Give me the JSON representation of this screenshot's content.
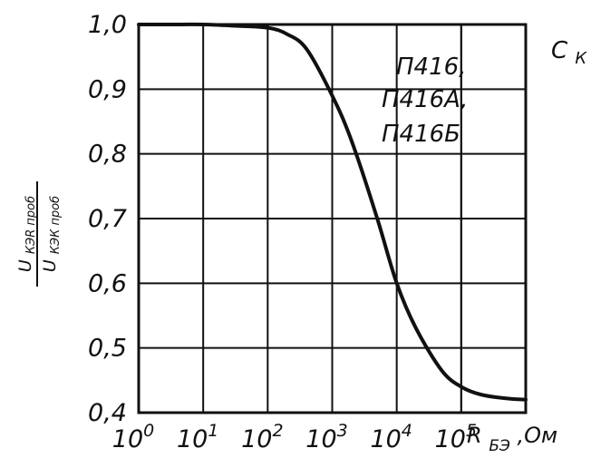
{
  "chart_data": {
    "type": "line",
    "x_scale": "log",
    "x_ticks": [
      1,
      10,
      100,
      1000,
      10000,
      100000
    ],
    "x_tick_labels": [
      {
        "base": "10",
        "exp": "0"
      },
      {
        "base": "10",
        "exp": "1"
      },
      {
        "base": "10",
        "exp": "2"
      },
      {
        "base": "10",
        "exp": "3"
      },
      {
        "base": "10",
        "exp": "4"
      },
      {
        "base": "10",
        "exp": "5"
      }
    ],
    "xlim": [
      1,
      1000000
    ],
    "ylim": [
      0.4,
      1.0
    ],
    "y_ticks": [
      1.0,
      0.9,
      0.8,
      0.7,
      0.6,
      0.5,
      0.4
    ],
    "y_tick_labels": [
      "1,0",
      "0,9",
      "0,8",
      "0,7",
      "0,6",
      "0,5",
      "0,4"
    ],
    "grid": true,
    "xlabel": {
      "main": "R",
      "sub": "БЭ",
      "unit": ",Ом"
    },
    "ylabel": {
      "numerator": "U",
      "numerator_sub": "КЭR проб",
      "denominator": "U",
      "denominator_sub": "КЭК проб"
    },
    "annotation": [
      "П416,",
      "П416А,",
      "П416Б"
    ],
    "corner_text": "С",
    "corner_sub": "К",
    "series": [
      {
        "x": [
          1,
          3,
          10,
          30,
          100,
          200,
          400,
          1000,
          2000,
          5000,
          10000,
          20000,
          50000,
          100000,
          200000,
          500000,
          1000000
        ],
        "y": [
          1.0,
          1.0,
          1.0,
          0.998,
          0.995,
          0.985,
          0.962,
          0.89,
          0.82,
          0.7,
          0.6,
          0.53,
          0.465,
          0.44,
          0.428,
          0.422,
          0.42
        ]
      }
    ]
  }
}
